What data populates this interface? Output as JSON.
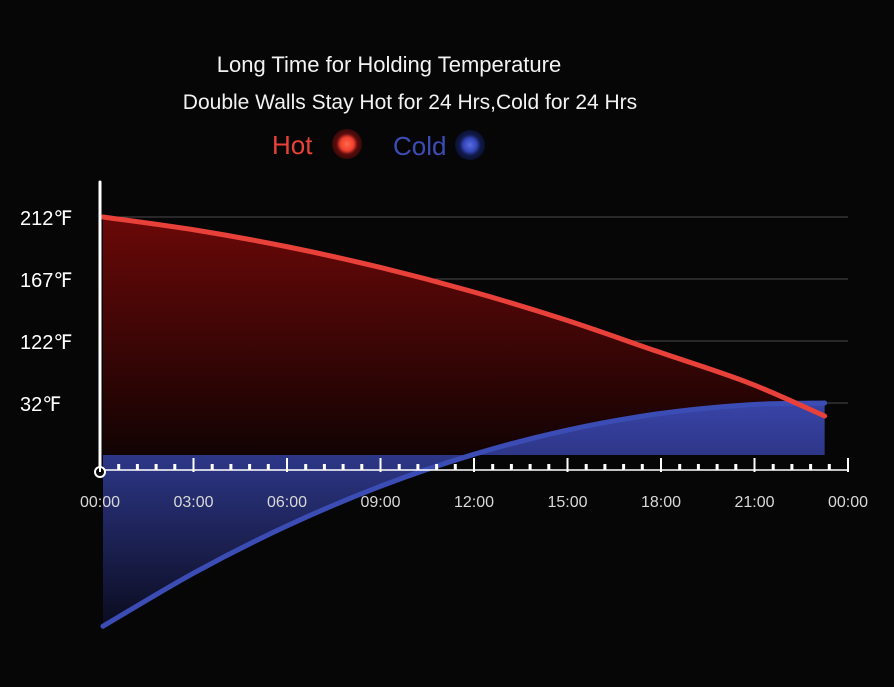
{
  "chart_data": {
    "type": "area",
    "title": "Long Time for Holding Temperature",
    "subtitle": "Double Walls Stay Hot for 24 Hrs,Cold for 24 Hrs",
    "x_tick_labels": [
      "00:00",
      "03:00",
      "06:00",
      "09:00",
      "12:00",
      "15:00",
      "18:00",
      "21:00",
      "00:00"
    ],
    "y_tick_labels": [
      "212℉",
      "167℉",
      "122℉",
      "32℉"
    ],
    "x": [
      0,
      3,
      6,
      9,
      12,
      15,
      18,
      21,
      23.5
    ],
    "series": [
      {
        "name": "Hot",
        "color": "#e8413a",
        "y_position_fraction": [
          1.0,
          0.93,
          0.84,
          0.73,
          0.6,
          0.45,
          0.28,
          0.11,
          -0.07
        ]
      },
      {
        "name": "Cold",
        "color": "#3b4db5",
        "y_position_fraction": [
          -1.2,
          -0.91,
          -0.66,
          -0.45,
          -0.28,
          -0.15,
          -0.06,
          -0.01,
          0.0
        ]
      }
    ],
    "legend": {
      "placement": "top-center"
    },
    "grid": true
  }
}
